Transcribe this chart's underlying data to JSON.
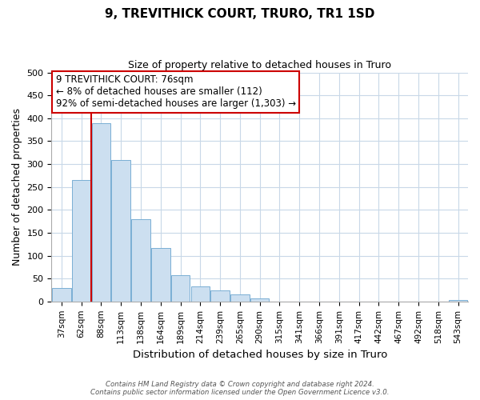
{
  "title": "9, TREVITHICK COURT, TRURO, TR1 1SD",
  "subtitle": "Size of property relative to detached houses in Truro",
  "xlabel": "Distribution of detached houses by size in Truro",
  "ylabel": "Number of detached properties",
  "bar_labels": [
    "37sqm",
    "62sqm",
    "88sqm",
    "113sqm",
    "138sqm",
    "164sqm",
    "189sqm",
    "214sqm",
    "239sqm",
    "265sqm",
    "290sqm",
    "315sqm",
    "341sqm",
    "366sqm",
    "391sqm",
    "417sqm",
    "442sqm",
    "467sqm",
    "492sqm",
    "518sqm",
    "543sqm"
  ],
  "bar_values": [
    30,
    265,
    390,
    308,
    180,
    116,
    58,
    32,
    25,
    15,
    6,
    0,
    0,
    0,
    0,
    0,
    0,
    0,
    0,
    0,
    3
  ],
  "bar_color": "#ccdff0",
  "bar_edge_color": "#7aafd4",
  "vline_x_bar_index": 1.5,
  "vline_color": "#cc0000",
  "ylim": [
    0,
    500
  ],
  "yticks": [
    0,
    50,
    100,
    150,
    200,
    250,
    300,
    350,
    400,
    450,
    500
  ],
  "annotation_title": "9 TREVITHICK COURT: 76sqm",
  "annotation_line1": "← 8% of detached houses are smaller (112)",
  "annotation_line2": "92% of semi-detached houses are larger (1,303) →",
  "annotation_box_color": "#ffffff",
  "annotation_box_edge": "#cc0000",
  "footer_line1": "Contains HM Land Registry data © Crown copyright and database right 2024.",
  "footer_line2": "Contains public sector information licensed under the Open Government Licence v3.0.",
  "bg_color": "#ffffff",
  "grid_color": "#c8d8e8"
}
